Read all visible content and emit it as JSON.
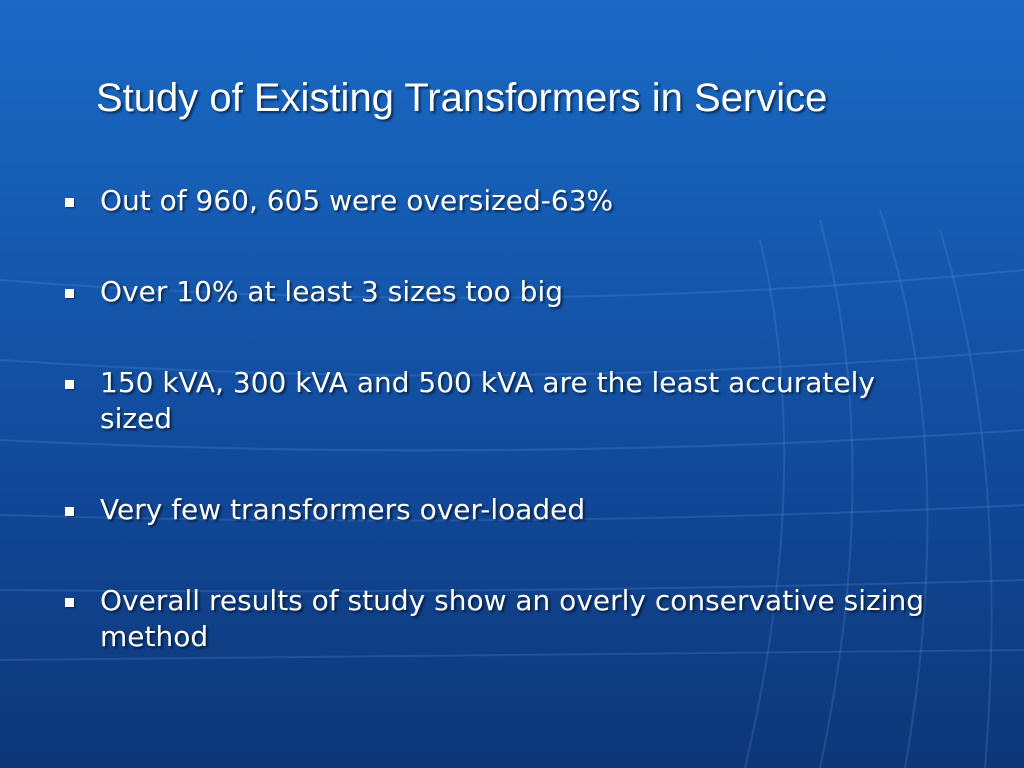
{
  "slide": {
    "title": "Study of Existing Transformers in Service",
    "bullets": [
      "Out of 960, 605 were oversized-63%",
      "Over 10% at least 3 sizes too big",
      "150 kVA, 300 kVA and 500 kVA are the least accurately sized",
      "Very few transformers over-loaded",
      "Overall results of study show an overly conservative sizing method"
    ]
  },
  "colors": {
    "background_top": "#1a69c4",
    "background_bottom": "#0d3777",
    "text": "#ffffff"
  }
}
